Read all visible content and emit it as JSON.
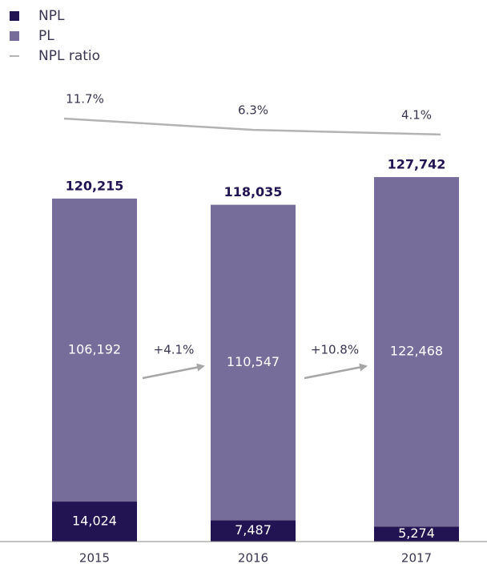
{
  "chart_data": {
    "type": "bar",
    "categories": [
      "2015",
      "2016",
      "2017"
    ],
    "series": [
      {
        "name": "NPL",
        "color": "#221452",
        "values": [
          14024,
          7487,
          5274
        ],
        "value_labels": [
          "14,024",
          "7,487",
          "5,274"
        ]
      },
      {
        "name": "PL",
        "color": "#776d9b",
        "values": [
          106192,
          110547,
          122468
        ],
        "value_labels": [
          "106,192",
          "110,547",
          "122,468"
        ]
      },
      {
        "name": "NPL ratio",
        "color": "#b3b3b3",
        "axis": "y2",
        "values": [
          11.7,
          6.3,
          4.1
        ],
        "value_labels": [
          "11.7%",
          "6.3%",
          "4.1%"
        ]
      }
    ],
    "totals": [
      120215,
      118035,
      127742
    ],
    "total_labels": [
      "120,215",
      "118,035",
      "127,742"
    ],
    "annotations": [
      "+4.1%",
      "+10.8%"
    ],
    "ylim": [
      0,
      130000
    ],
    "y2lim": [
      -50,
      15
    ],
    "stacked": true,
    "legend": "top-left"
  }
}
